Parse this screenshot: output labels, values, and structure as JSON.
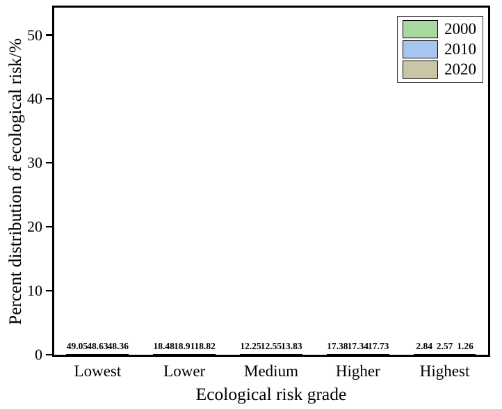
{
  "chart_data": {
    "type": "bar",
    "title": "",
    "categories": [
      "Lowest",
      "Lower",
      "Medium",
      "Higher",
      "Highest"
    ],
    "series": [
      {
        "name": "2000",
        "color": "#a8d8a0",
        "values": [
          49.05,
          18.48,
          12.25,
          17.38,
          2.84
        ]
      },
      {
        "name": "2010",
        "color": "#a8c5f0",
        "values": [
          48.63,
          18.91,
          12.55,
          17.34,
          2.57
        ]
      },
      {
        "name": "2020",
        "color": "#c9c6a6",
        "values": [
          48.36,
          18.82,
          13.83,
          17.73,
          1.26
        ]
      }
    ],
    "xlabel": "Ecological risk grade",
    "ylabel": "Percent distribution of ecological risk/%",
    "yticks": [
      0,
      10,
      20,
      30,
      40,
      50
    ],
    "ylim": [
      0,
      54.3
    ],
    "grid": false,
    "legend_position": "top-right",
    "bar_border_color": "#000000",
    "frame_color": "#000000"
  }
}
